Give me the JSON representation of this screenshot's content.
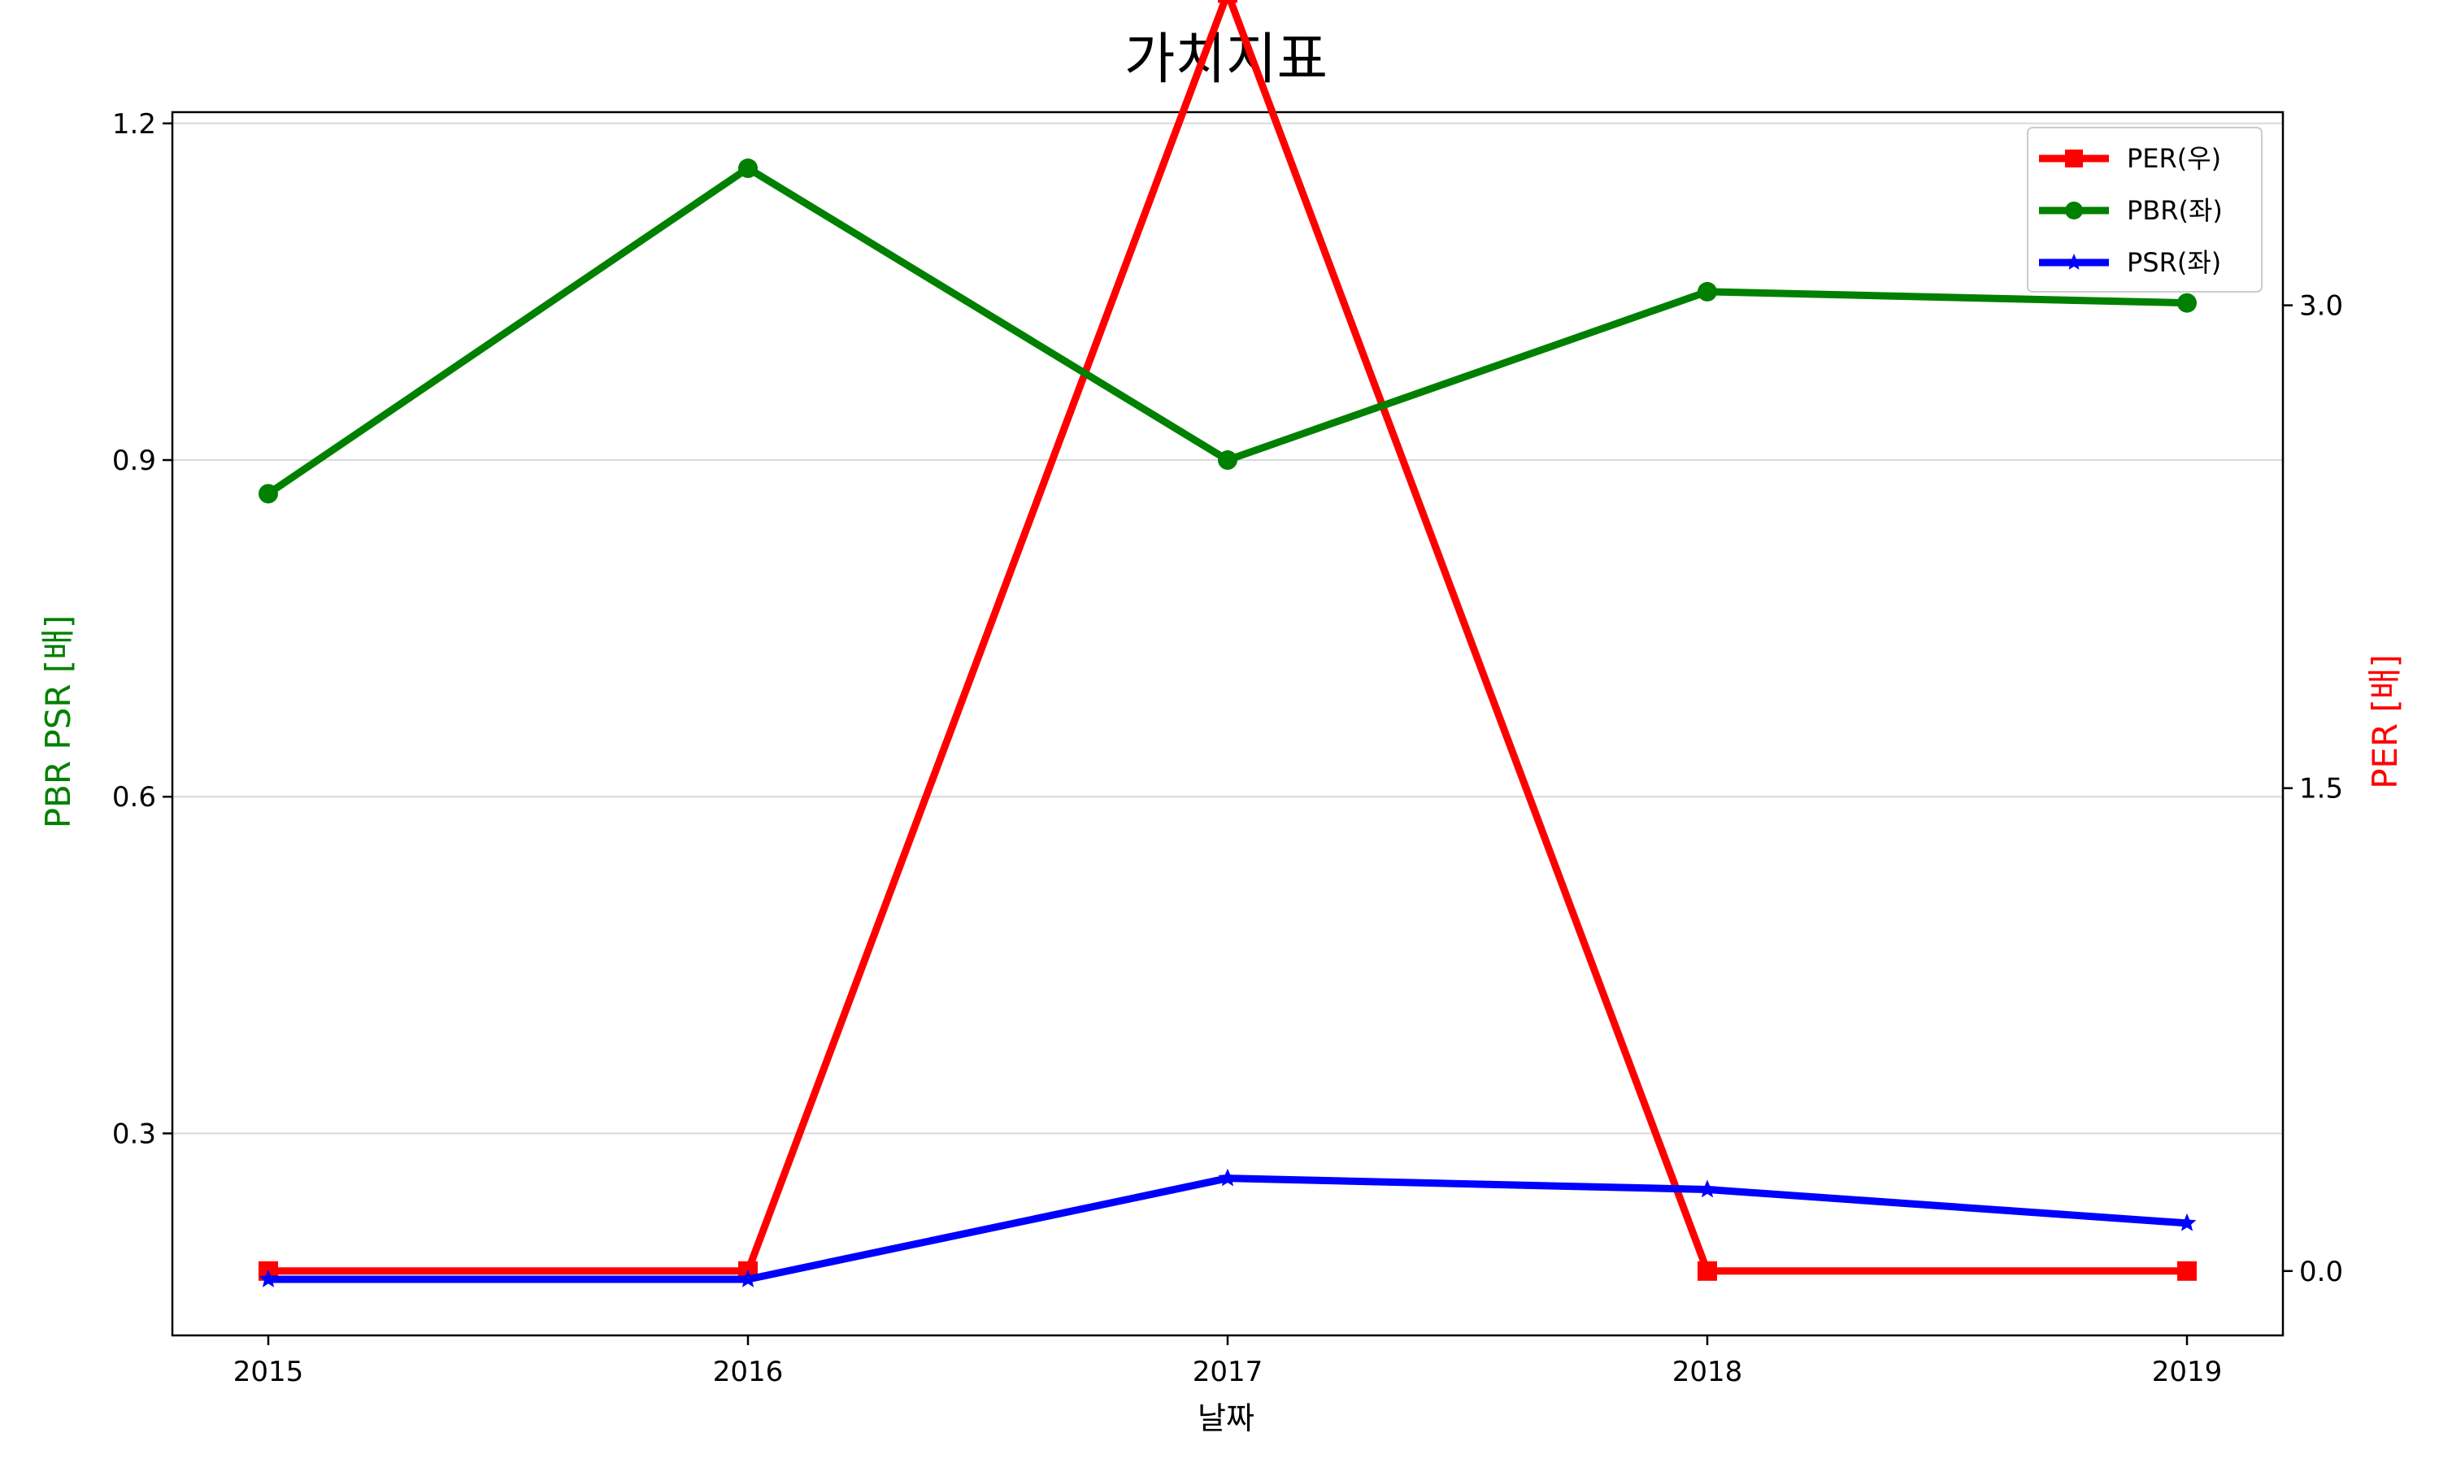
{
  "chart_data": {
    "type": "line",
    "title": "가치지표",
    "xlabel": "날짜",
    "ylabel_left": "PBR PSR [배]",
    "ylabel_right": "PER [배]",
    "categories": [
      "2015",
      "2016",
      "2017",
      "2018",
      "2019"
    ],
    "left_axis": {
      "ylim": [
        0.12,
        1.21
      ],
      "ticks": [
        0.3,
        0.6,
        0.9,
        1.2
      ],
      "tick_labels": [
        "0.3",
        "0.6",
        "0.9",
        "1.2"
      ],
      "grid": true
    },
    "right_axis": {
      "ylim": [
        -0.2,
        3.6
      ],
      "ticks": [
        0.0,
        1.5,
        3.0
      ],
      "tick_labels": [
        "0.0",
        "1.5",
        "3.0"
      ]
    },
    "series": [
      {
        "name": "PER(우)",
        "axis": "right",
        "color": "#ff0000",
        "marker": "square",
        "values": [
          0.0,
          0.0,
          3.97,
          0.0,
          0.0
        ]
      },
      {
        "name": "PBR(좌)",
        "axis": "left",
        "color": "#008000",
        "marker": "circle",
        "values": [
          0.87,
          1.16,
          0.9,
          1.05,
          1.04
        ]
      },
      {
        "name": "PSR(좌)",
        "axis": "left",
        "color": "#0000ff",
        "marker": "star",
        "values": [
          0.17,
          0.17,
          0.26,
          0.25,
          0.22
        ]
      }
    ],
    "legend_position": "top-right"
  }
}
